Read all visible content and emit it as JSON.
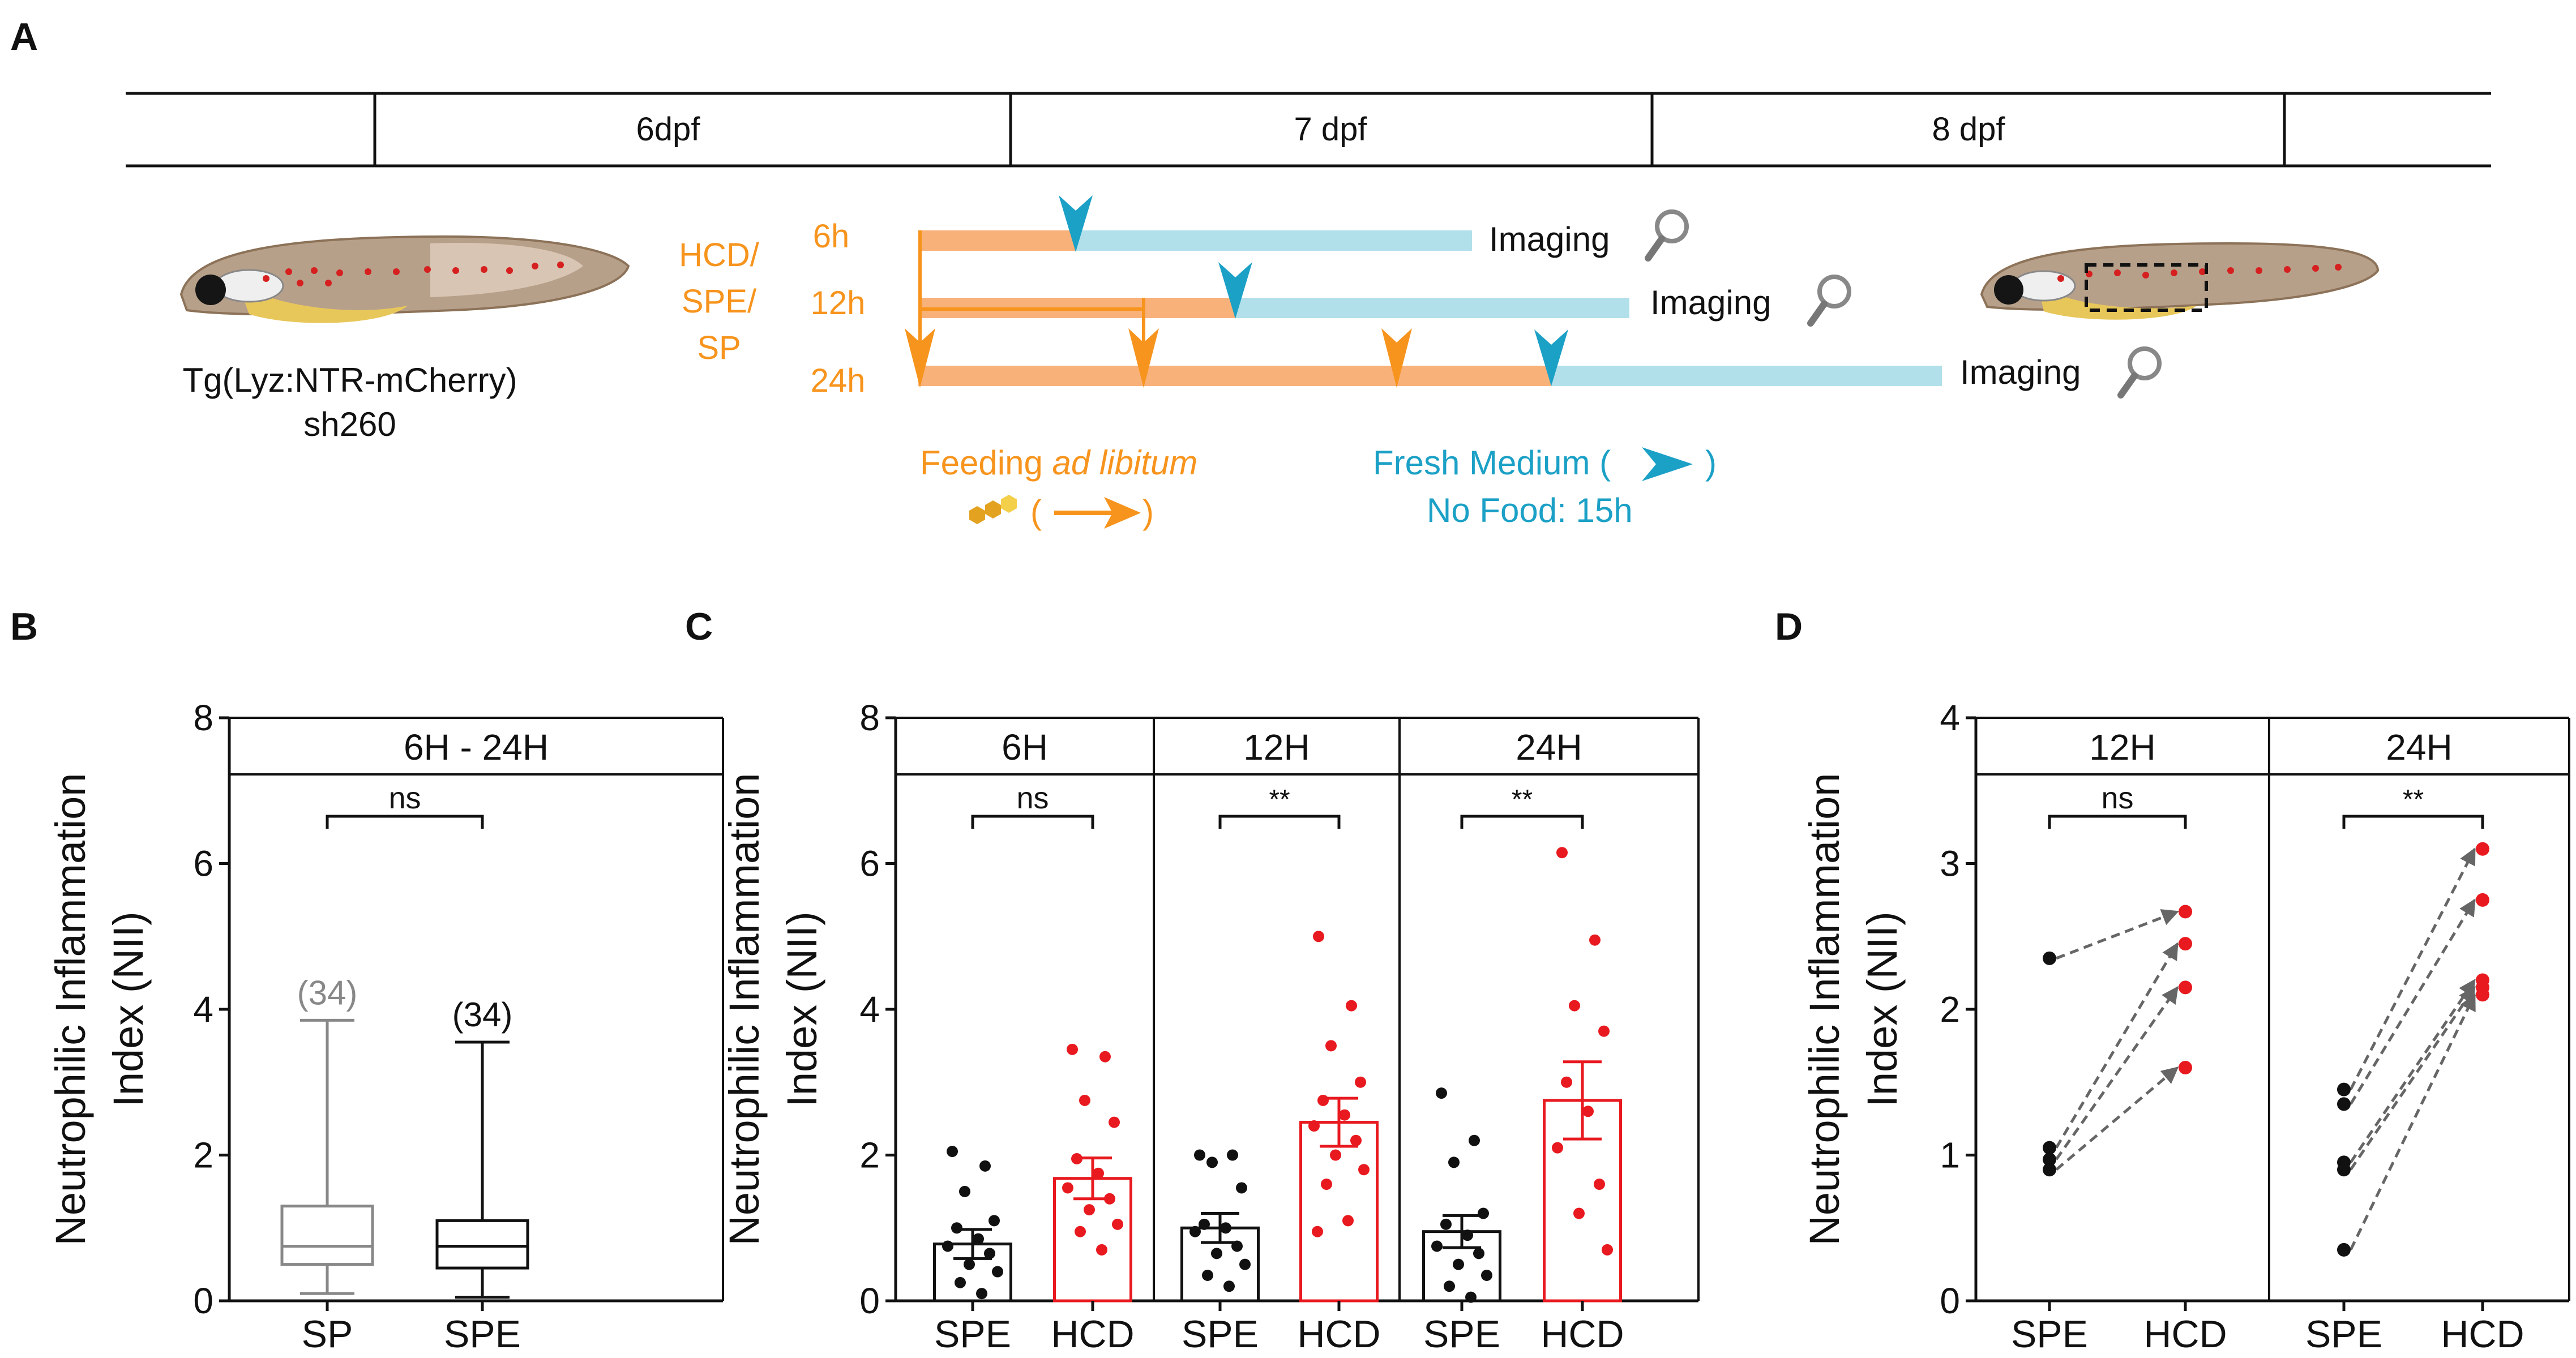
{
  "panels": {
    "A": {
      "letter": "A",
      "timeline": [
        "6dpf",
        "7 dpf",
        "8 dpf"
      ],
      "fish_left_label": [
        "Tg(Lyz:NTR-mCherry)",
        "sh260"
      ],
      "group_label": [
        "HCD/",
        "SPE/",
        "SP"
      ],
      "durations": [
        "6h",
        "12h",
        "24h"
      ],
      "imaging_label": "Imaging",
      "feeding_label": "Feeding",
      "feeding_italic": "ad libitum",
      "paren_open": "(",
      "paren_close": ")",
      "fresh_medium_label": "Fresh Medium (",
      "no_food_label": "No Food: 15h"
    },
    "B": {
      "letter": "B"
    },
    "C": {
      "letter": "C"
    },
    "D": {
      "letter": "D"
    }
  },
  "colors": {
    "orange": "#F7941D",
    "orange_bar": "#F9B17A",
    "blue": "#1BA0C6",
    "blue_bar": "#B2E0EA",
    "red": "#E8191F",
    "black": "#111111",
    "gray": "#888888"
  },
  "chart_data": [
    {
      "id": "B",
      "type": "box",
      "facet": "6H - 24H",
      "ylabel": [
        "Neutrophilic Inflammation",
        "Index (NII)"
      ],
      "ylim": [
        0,
        8
      ],
      "yticks": [
        0,
        2,
        4,
        6,
        8
      ],
      "categories": [
        "SP",
        "SPE"
      ],
      "boxes": [
        {
          "name": "SP",
          "min": 0.1,
          "q1": 0.5,
          "median": 0.75,
          "q3": 1.3,
          "max": 3.85,
          "n_label": "(34)",
          "color": "#888888"
        },
        {
          "name": "SPE",
          "min": 0.05,
          "q1": 0.45,
          "median": 0.75,
          "q3": 1.1,
          "max": 3.55,
          "n_label": "(34)",
          "color": "#111111"
        }
      ],
      "significance": [
        {
          "label": "ns"
        }
      ]
    },
    {
      "id": "C",
      "type": "bar",
      "ylabel": [
        "Neutrophilic Inflammation",
        "Index (NII)"
      ],
      "ylim": [
        0,
        8
      ],
      "yticks": [
        0,
        2,
        4,
        6,
        8
      ],
      "categories": [
        "SPE",
        "HCD"
      ],
      "facets": [
        {
          "label": "6H",
          "significance": "ns",
          "groups": [
            {
              "name": "SPE",
              "mean": 0.78,
              "sem": 0.2,
              "color": "#111111",
              "points": [
                2.05,
                1.85,
                1.5,
                1.1,
                1.0,
                0.85,
                0.75,
                0.65,
                0.5,
                0.4,
                0.25,
                0.1
              ]
            },
            {
              "name": "HCD",
              "mean": 1.68,
              "sem": 0.28,
              "color": "#E8191F",
              "points": [
                3.45,
                3.35,
                2.75,
                2.45,
                1.95,
                1.75,
                1.55,
                1.4,
                1.25,
                1.05,
                0.95,
                0.7
              ]
            }
          ]
        },
        {
          "label": "12H",
          "significance": "**",
          "groups": [
            {
              "name": "SPE",
              "mean": 1.0,
              "sem": 0.2,
              "color": "#111111",
              "points": [
                2.0,
                2.0,
                1.9,
                1.55,
                1.05,
                1.0,
                0.95,
                0.75,
                0.65,
                0.5,
                0.35,
                0.2
              ]
            },
            {
              "name": "HCD",
              "mean": 2.45,
              "sem": 0.33,
              "color": "#E8191F",
              "points": [
                5.0,
                4.05,
                3.5,
                3.0,
                2.75,
                2.55,
                2.4,
                2.2,
                2.0,
                1.8,
                1.6,
                1.1,
                0.95
              ]
            }
          ]
        },
        {
          "label": "24H",
          "significance": "**",
          "groups": [
            {
              "name": "SPE",
              "mean": 0.95,
              "sem": 0.22,
              "color": "#111111",
              "points": [
                2.85,
                2.2,
                1.9,
                1.2,
                1.05,
                0.9,
                0.75,
                0.65,
                0.5,
                0.35,
                0.2,
                0.05
              ]
            },
            {
              "name": "HCD",
              "mean": 2.75,
              "sem": 0.53,
              "color": "#E8191F",
              "points": [
                6.15,
                4.95,
                4.05,
                3.7,
                3.0,
                2.6,
                2.1,
                1.6,
                1.2,
                0.7
              ]
            }
          ]
        }
      ]
    },
    {
      "id": "D",
      "type": "paired",
      "ylabel": [
        "Neutrophilic Inflammation",
        "Index (NII)"
      ],
      "ylim": [
        0,
        4
      ],
      "yticks": [
        0,
        1,
        2,
        3,
        4
      ],
      "categories": [
        "SPE",
        "HCD"
      ],
      "facets": [
        {
          "label": "12H",
          "significance": "ns",
          "pairs": [
            [
              2.35,
              2.67
            ],
            [
              1.05,
              2.45
            ],
            [
              0.97,
              2.15
            ],
            [
              0.9,
              1.6
            ]
          ]
        },
        {
          "label": "24H",
          "significance": "**",
          "pairs": [
            [
              1.45,
              3.1
            ],
            [
              1.35,
              2.75
            ],
            [
              0.95,
              2.2
            ],
            [
              0.9,
              2.15
            ],
            [
              0.35,
              2.1
            ]
          ]
        }
      ]
    }
  ]
}
